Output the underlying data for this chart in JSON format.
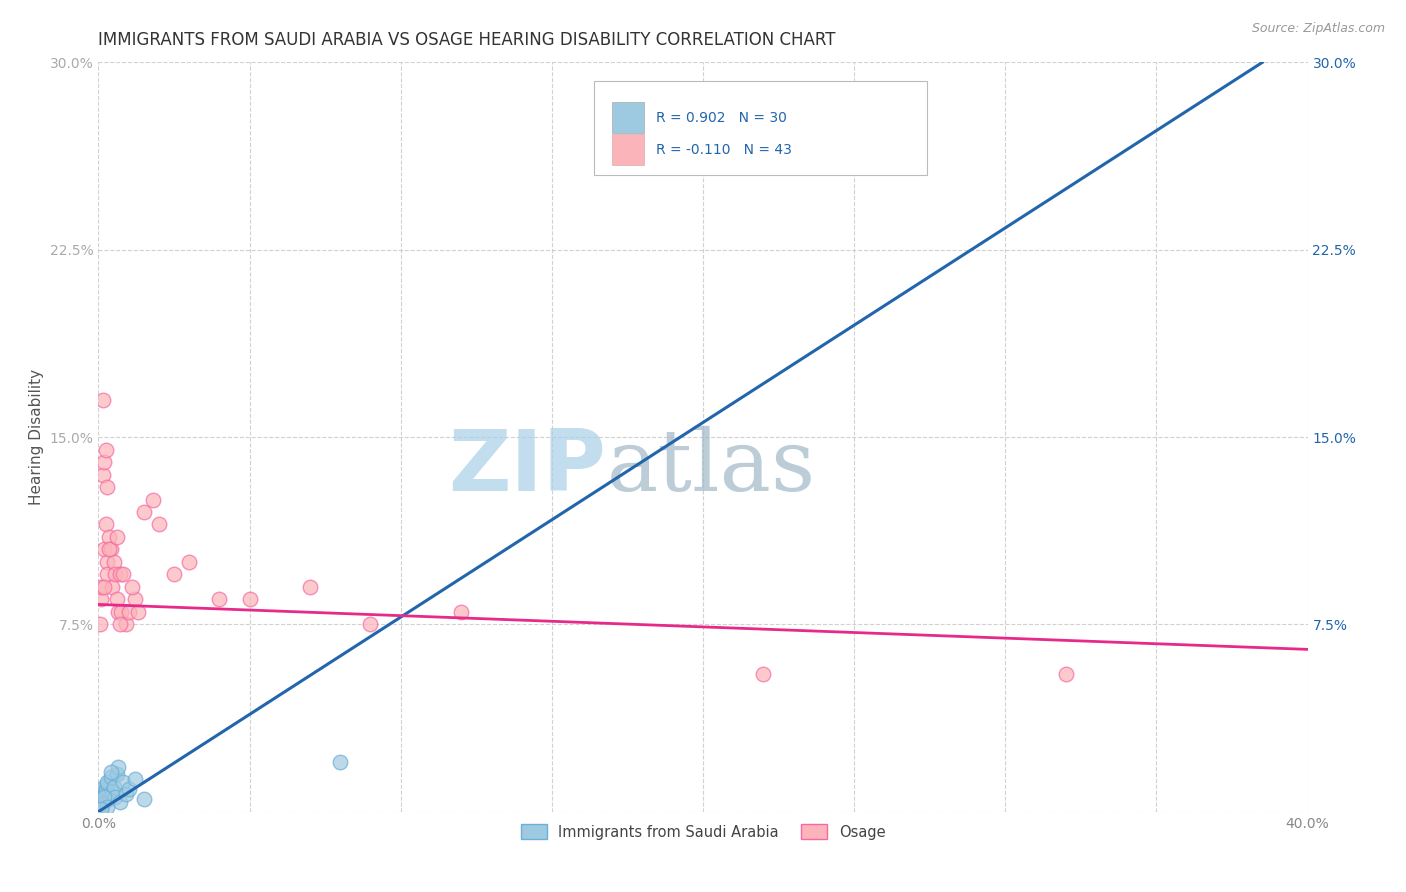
{
  "title": "IMMIGRANTS FROM SAUDI ARABIA VS OSAGE HEARING DISABILITY CORRELATION CHART",
  "source": "Source: ZipAtlas.com",
  "ylabel": "Hearing Disability",
  "x_tick_labels": [
    "0.0%",
    "",
    "",
    "",
    "",
    "",
    "",
    "",
    "40.0%"
  ],
  "x_tick_values": [
    0.0,
    5.0,
    10.0,
    15.0,
    20.0,
    25.0,
    30.0,
    35.0,
    40.0
  ],
  "y_tick_labels": [
    "",
    "7.5%",
    "15.0%",
    "22.5%",
    "30.0%"
  ],
  "y_tick_values": [
    0.0,
    7.5,
    15.0,
    22.5,
    30.0
  ],
  "xlim": [
    0.0,
    40.0
  ],
  "ylim": [
    0.0,
    30.0
  ],
  "legend_labels": [
    "Immigrants from Saudi Arabia",
    "Osage"
  ],
  "legend_r_values": [
    "R = 0.902",
    "R = -0.110"
  ],
  "legend_n_values": [
    "N = 30",
    "N = 43"
  ],
  "blue_color": "#9ecae1",
  "pink_color": "#fbb4b9",
  "blue_edge_color": "#6baed6",
  "pink_edge_color": "#f768a1",
  "trendline_blue_color": "#2166ac",
  "trendline_pink_color": "#e7298a",
  "watermark_zip_color": "#a8cfe8",
  "watermark_atlas_color": "#a0b8c8",
  "title_fontsize": 12,
  "axis_label_fontsize": 11,
  "tick_fontsize": 10,
  "blue_points_x": [
    0.05,
    0.08,
    0.1,
    0.12,
    0.15,
    0.18,
    0.2,
    0.22,
    0.25,
    0.28,
    0.3,
    0.35,
    0.4,
    0.45,
    0.5,
    0.55,
    0.6,
    0.65,
    0.7,
    0.8,
    0.9,
    1.0,
    1.2,
    1.5,
    0.15,
    0.2,
    0.3,
    0.4,
    8.0,
    0.1
  ],
  "blue_points_y": [
    0.2,
    0.4,
    0.3,
    0.5,
    0.6,
    0.8,
    1.0,
    0.7,
    0.9,
    1.1,
    1.2,
    0.5,
    1.4,
    0.8,
    1.0,
    0.6,
    1.5,
    1.8,
    0.4,
    1.2,
    0.7,
    0.9,
    1.3,
    0.5,
    0.3,
    0.6,
    0.2,
    1.6,
    2.0,
    0.1
  ],
  "pink_points_x": [
    0.05,
    0.08,
    0.1,
    0.15,
    0.18,
    0.2,
    0.25,
    0.28,
    0.3,
    0.35,
    0.4,
    0.45,
    0.5,
    0.55,
    0.6,
    0.65,
    0.7,
    0.75,
    0.8,
    0.9,
    1.0,
    1.2,
    1.5,
    1.8,
    2.0,
    2.5,
    3.0,
    4.0,
    5.0,
    7.0,
    9.0,
    12.0,
    0.2,
    0.25,
    0.3,
    0.35,
    22.0,
    32.0,
    0.6,
    0.7,
    1.1,
    1.3,
    0.15
  ],
  "pink_points_y": [
    7.5,
    8.5,
    9.0,
    13.5,
    10.5,
    14.0,
    11.5,
    10.0,
    9.5,
    11.0,
    10.5,
    9.0,
    10.0,
    9.5,
    8.5,
    8.0,
    9.5,
    8.0,
    9.5,
    7.5,
    8.0,
    8.5,
    12.0,
    12.5,
    11.5,
    9.5,
    10.0,
    8.5,
    8.5,
    9.0,
    7.5,
    8.0,
    9.0,
    14.5,
    13.0,
    10.5,
    5.5,
    5.5,
    11.0,
    7.5,
    9.0,
    8.0,
    16.5
  ],
  "blue_trendline_x": [
    0.0,
    38.5
  ],
  "blue_trendline_y": [
    0.0,
    30.0
  ],
  "pink_trendline_x": [
    0.0,
    40.0
  ],
  "pink_trendline_y": [
    8.3,
    6.5
  ]
}
